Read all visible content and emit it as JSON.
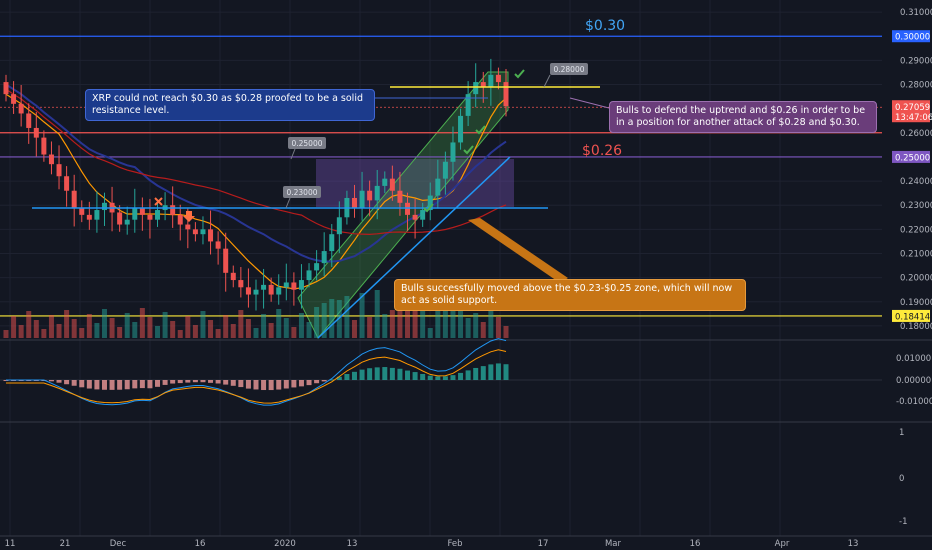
{
  "chart_data": {
    "type": "candlestick",
    "symbol": "XRP",
    "y_axis": {
      "ticks": [
        "0.31000",
        "0.29000",
        "0.28000",
        "0.26000",
        "0.24000",
        "0.23000",
        "0.22000",
        "0.21000",
        "0.20000",
        "0.19000",
        "0.18000"
      ],
      "range": [
        0.175,
        0.315
      ]
    },
    "x_axis": {
      "ticks": [
        "11",
        "21",
        "Dec",
        "16",
        "2020",
        "13",
        "Feb",
        "17",
        "Mar",
        "16",
        "Apr",
        "13"
      ]
    },
    "levels": [
      {
        "price": 0.3,
        "color": "#2962ff",
        "tag": "0.30000"
      },
      {
        "price": 0.25,
        "color": "#7e57c2",
        "tag": "0.25000"
      },
      {
        "price": 0.26,
        "color": "#ef5350"
      },
      {
        "price": 0.18414,
        "color": "#ffeb3b",
        "tag": "0.18414"
      }
    ],
    "last_price": {
      "value": "0.27059",
      "countdown": "13:47:06",
      "color": "#ef5350"
    },
    "price_labels": {
      "p030": "$0.30",
      "p026": "$0.26"
    },
    "callouts": {
      "c1": "0.28000",
      "c2": "0.25000",
      "c3": "0.23000"
    },
    "candles_close": [
      0.276,
      0.272,
      0.268,
      0.262,
      0.258,
      0.251,
      0.247,
      0.242,
      0.236,
      0.229,
      0.226,
      0.224,
      0.228,
      0.231,
      0.227,
      0.222,
      0.224,
      0.229,
      0.226,
      0.224,
      0.228,
      0.23,
      0.226,
      0.222,
      0.22,
      0.218,
      0.22,
      0.215,
      0.212,
      0.202,
      0.199,
      0.196,
      0.193,
      0.195,
      0.197,
      0.193,
      0.196,
      0.198,
      0.195,
      0.199,
      0.203,
      0.206,
      0.211,
      0.218,
      0.225,
      0.233,
      0.229,
      0.236,
      0.232,
      0.238,
      0.241,
      0.236,
      0.231,
      0.226,
      0.224,
      0.228,
      0.234,
      0.241,
      0.248,
      0.256,
      0.267,
      0.276,
      0.281,
      0.279,
      0.284,
      0.281,
      0.271
    ],
    "indicator": {
      "name": "MACD",
      "ticks": [
        "0.01000",
        "0.00000",
        "-0.01000"
      ]
    },
    "sub_ticks": [
      "1",
      "0",
      "-1"
    ]
  },
  "annotations": {
    "resistance": "XRP could not reach $0.30 as $0.28 proofed to be a solid resistance level.",
    "bulls_defend": "Bulls to defend the uptrend and $0.26 in order to be in a position for another attack of $0.28 and $0.30.",
    "support": "Bulls successfully moved above the $0.23-$0.25 zone, which will now act as solid support."
  },
  "colors": {
    "bg": "#131722",
    "up": "#26a69a",
    "down": "#ef5350",
    "blue": "#2962ff",
    "purple": "#7e57c2",
    "yellow": "#ffeb3b",
    "orange": "#ff9800"
  }
}
